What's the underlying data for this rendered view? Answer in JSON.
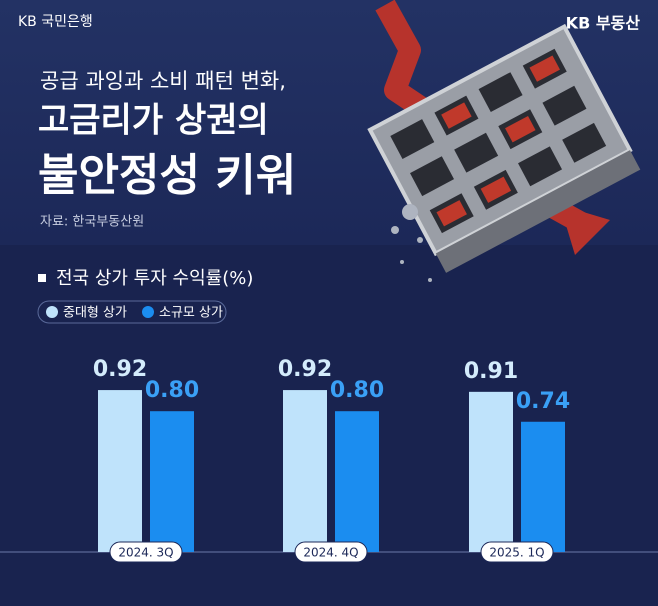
{
  "header": {
    "bank": "KB 국민은행",
    "brand": "KB 부동산"
  },
  "chart_data": {
    "type": "bar",
    "subtitle": "공급 과잉과 소비 패턴 변화,",
    "title_lines": [
      "고금리가 상권의",
      "불안정성 키워"
    ],
    "source": "자료: 한국부동산원",
    "chart_title": "전국 상가 투자 수익률(%)",
    "categories": [
      "2024. 3Q",
      "2024. 4Q",
      "2025. 1Q"
    ],
    "series": [
      {
        "name": "중대형 상가",
        "color": "#bfe3fb",
        "values": [
          0.92,
          0.92,
          0.91
        ],
        "value_labels": [
          "0.92",
          "0.92",
          "0.91"
        ]
      },
      {
        "name": "소규모 상가",
        "color": "#1b8df0",
        "values": [
          0.8,
          0.8,
          0.74
        ],
        "value_labels": [
          "0.80",
          "0.80",
          "0.74"
        ]
      }
    ]
  }
}
